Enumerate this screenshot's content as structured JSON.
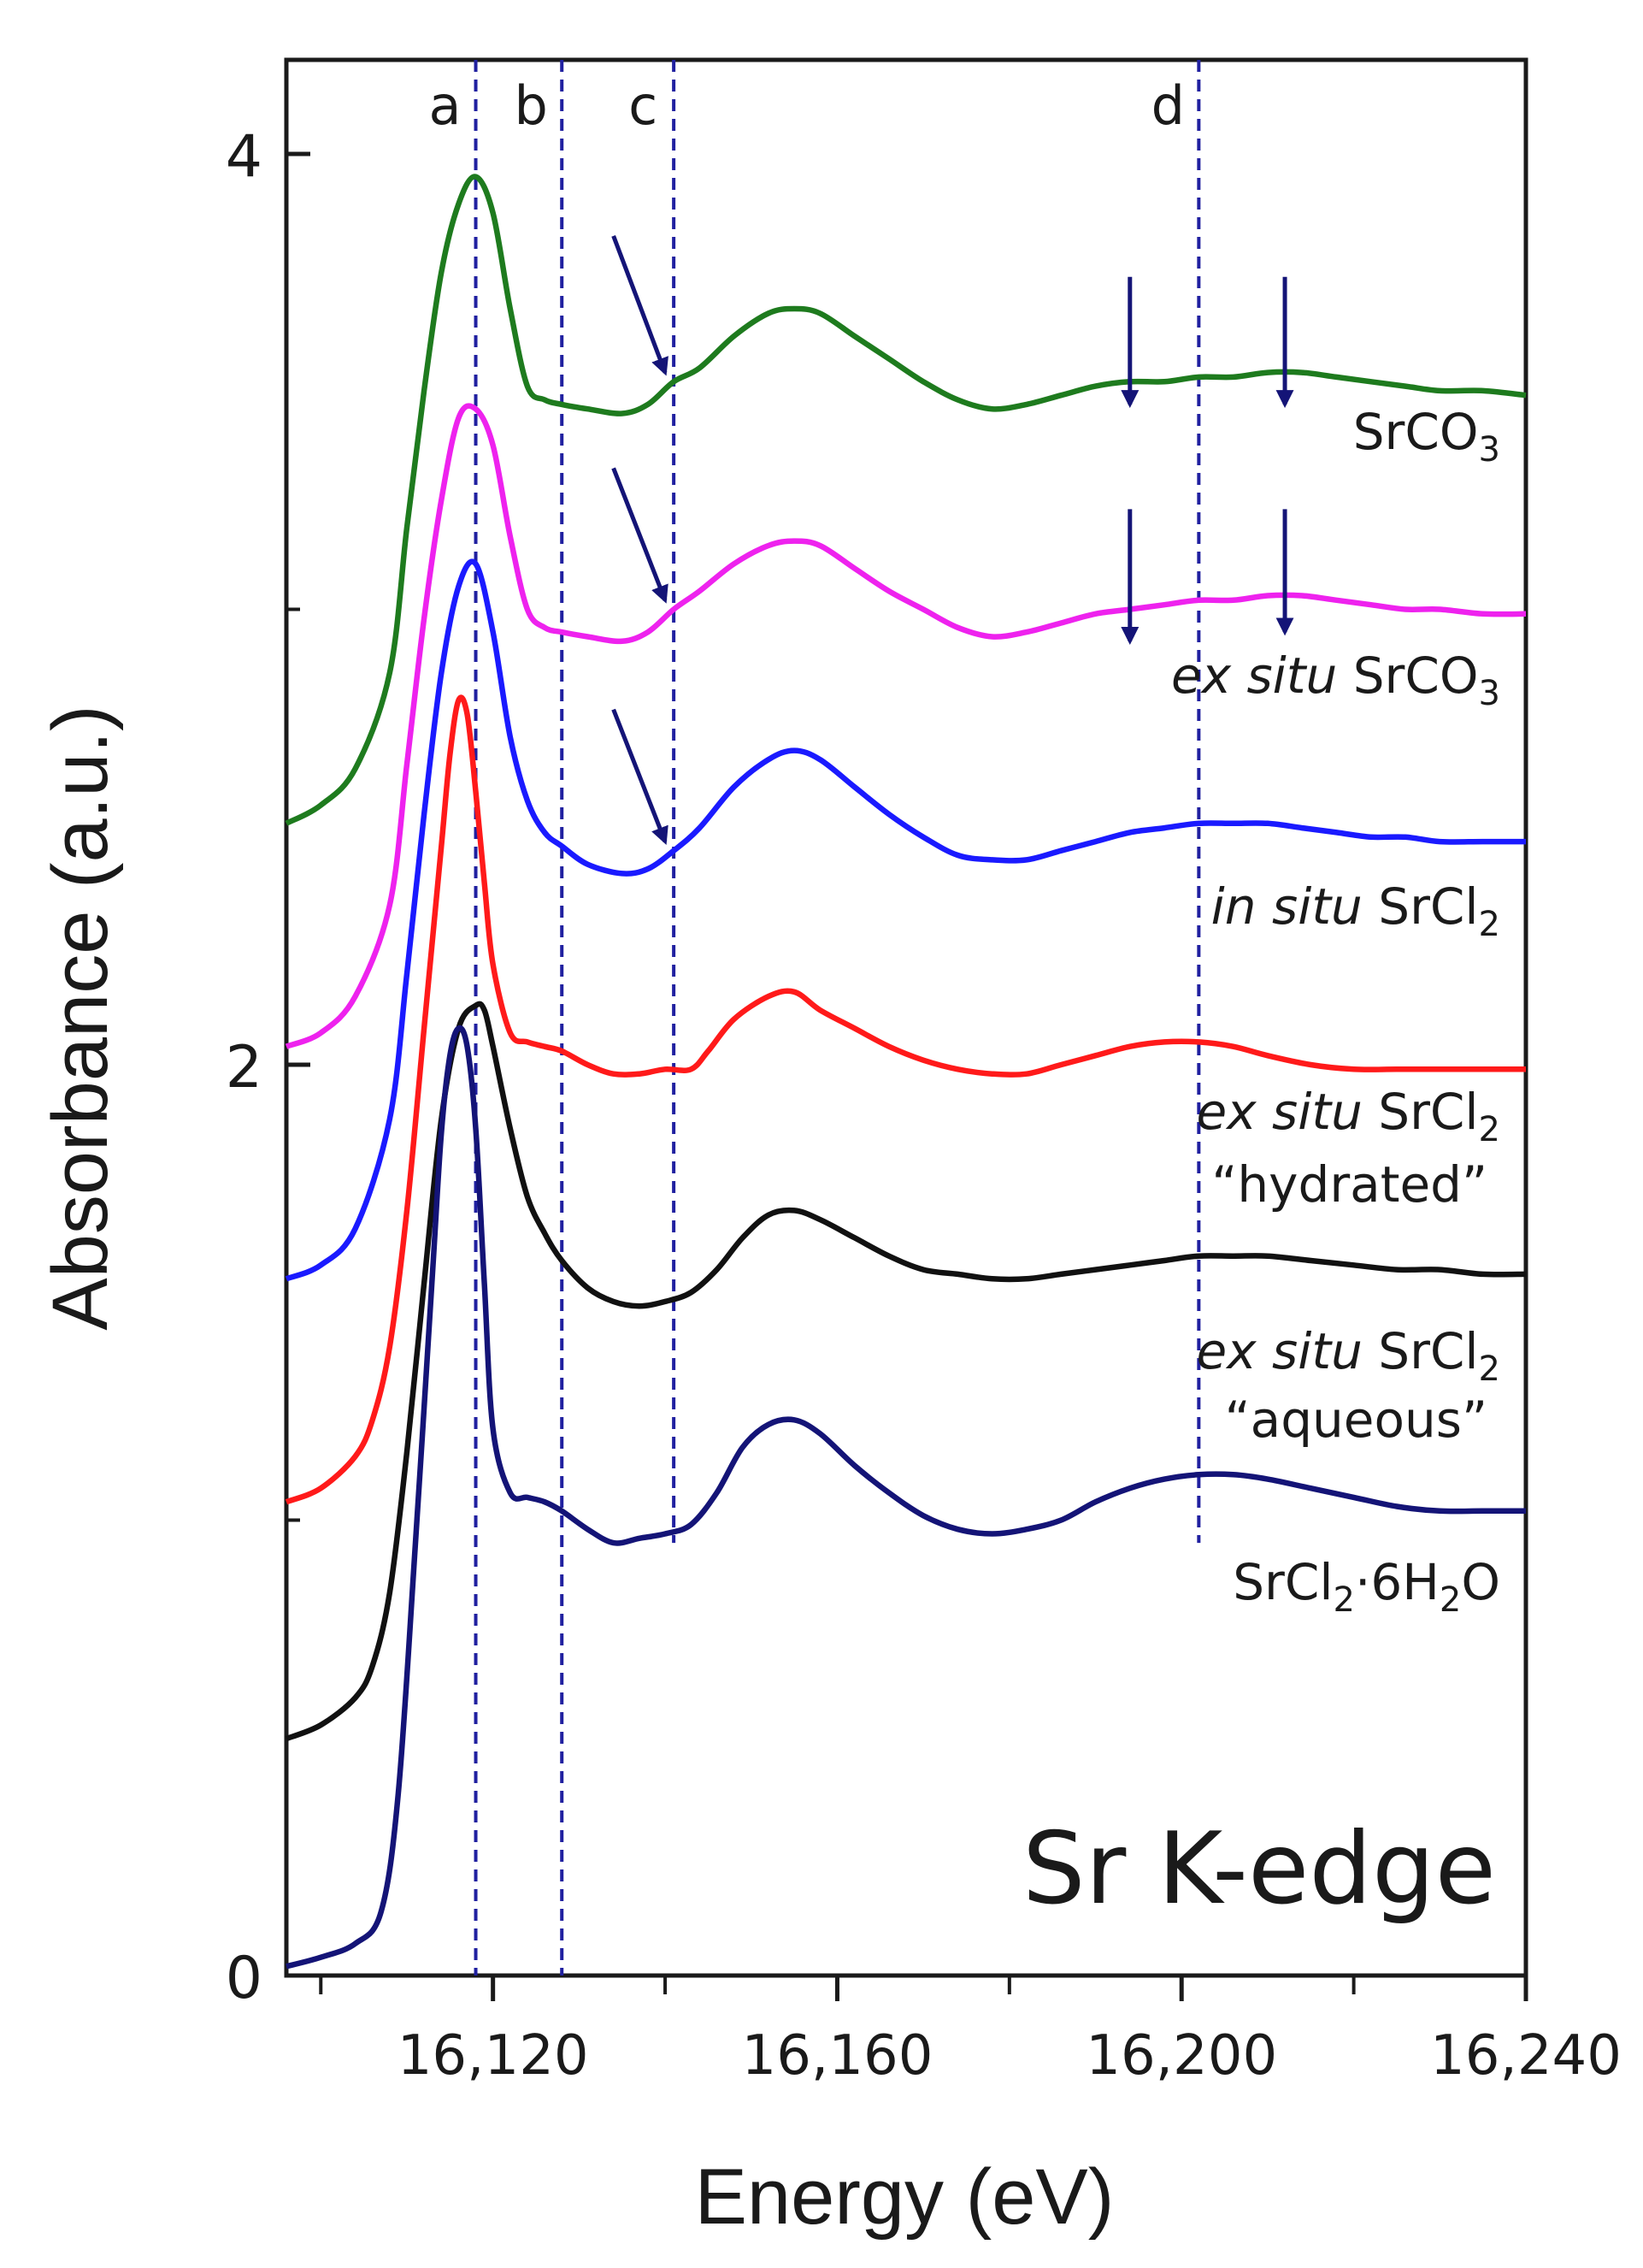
{
  "chart_data": {
    "type": "line",
    "title": "Sr K-edge",
    "xlabel": "Energy (eV)",
    "ylabel": "Absorbance (a.u.)",
    "xlim": [
      16096,
      16240
    ],
    "ylim": [
      0,
      4.2
    ],
    "x_ticks": [
      {
        "value": 16120,
        "label": "16,120"
      },
      {
        "value": 16160,
        "label": "16,160"
      },
      {
        "value": 16200,
        "label": "16,200"
      },
      {
        "value": 16240,
        "label": "16,240"
      }
    ],
    "x_minor_ticks": [
      16100,
      16140,
      16180,
      16220
    ],
    "y_ticks": [
      {
        "value": 0,
        "label": "0"
      },
      {
        "value": 2,
        "label": "2"
      },
      {
        "value": 4,
        "label": "4"
      }
    ],
    "y_minor_ticks": [
      1,
      3
    ],
    "reference_lines": [
      {
        "label": "a",
        "x": 16118
      },
      {
        "label": "b",
        "x": 16128
      },
      {
        "label": "c",
        "x": 16141
      },
      {
        "label": "d",
        "x": 16202
      }
    ],
    "arrows": [
      {
        "series": "SrCO3",
        "from": [
          16134,
          3.82
        ],
        "to": [
          16140,
          3.52
        ]
      },
      {
        "series": "ex situ SrCO3",
        "from": [
          16134,
          3.31
        ],
        "to": [
          16140,
          3.02
        ]
      },
      {
        "series": "in situ SrCl2",
        "from": [
          16134,
          2.78
        ],
        "to": [
          16140,
          2.49
        ]
      },
      {
        "series": "SrCO3",
        "from": [
          16194,
          3.73
        ],
        "to": [
          16194,
          3.45
        ]
      },
      {
        "series": "SrCO3",
        "from": [
          16212,
          3.73
        ],
        "to": [
          16212,
          3.45
        ]
      },
      {
        "series": "ex situ SrCO3",
        "from": [
          16194,
          3.22
        ],
        "to": [
          16194,
          2.93
        ]
      },
      {
        "series": "ex situ SrCO3",
        "from": [
          16212,
          3.22
        ],
        "to": [
          16212,
          2.95
        ]
      }
    ],
    "series": [
      {
        "name": "SrCO3",
        "label_parts": [
          {
            "t": "SrCO",
            "s": "normal"
          },
          {
            "t": "3",
            "s": "sub"
          }
        ],
        "label_lines": 1,
        "color": "#1e7b1e",
        "x": [
          16096,
          16100,
          16104,
          16108,
          16110,
          16112,
          16114,
          16116,
          16118,
          16120,
          16122,
          16124,
          16126,
          16128,
          16131,
          16135,
          16138,
          16141,
          16144,
          16148,
          16152,
          16155,
          16158,
          16162,
          16166,
          16170,
          16174,
          16178,
          16182,
          16186,
          16190,
          16194,
          16198,
          16202,
          16206,
          16210,
          16214,
          16218,
          16222,
          16226,
          16230,
          16235,
          16240
        ],
        "values": [
          2.53,
          2.57,
          2.65,
          2.86,
          3.18,
          3.48,
          3.74,
          3.89,
          3.95,
          3.87,
          3.66,
          3.49,
          3.46,
          3.45,
          3.44,
          3.43,
          3.45,
          3.5,
          3.53,
          3.6,
          3.65,
          3.66,
          3.65,
          3.6,
          3.55,
          3.5,
          3.46,
          3.44,
          3.45,
          3.47,
          3.49,
          3.5,
          3.5,
          3.51,
          3.51,
          3.52,
          3.52,
          3.51,
          3.5,
          3.49,
          3.48,
          3.48,
          3.47
        ]
      },
      {
        "name": "ex situ SrCO3",
        "label_parts": [
          {
            "t": "ex situ",
            "s": "italic"
          },
          {
            "t": " SrCO",
            "s": "normal"
          },
          {
            "t": "3",
            "s": "sub"
          }
        ],
        "label_lines": 1,
        "color": "#ee22ee",
        "x": [
          16096,
          16100,
          16104,
          16108,
          16110,
          16112,
          16114,
          16116,
          16118,
          16120,
          16122,
          16124,
          16126,
          16128,
          16131,
          16135,
          16138,
          16141,
          16144,
          16148,
          16152,
          16155,
          16158,
          16162,
          16166,
          16170,
          16174,
          16178,
          16182,
          16186,
          16190,
          16194,
          16198,
          16202,
          16206,
          16210,
          16214,
          16218,
          16222,
          16226,
          16230,
          16235,
          16240
        ],
        "values": [
          2.04,
          2.07,
          2.15,
          2.35,
          2.66,
          2.98,
          3.24,
          3.42,
          3.44,
          3.36,
          3.16,
          3.0,
          2.96,
          2.95,
          2.94,
          2.93,
          2.95,
          3.0,
          3.04,
          3.1,
          3.14,
          3.15,
          3.14,
          3.09,
          3.04,
          3.0,
          2.96,
          2.94,
          2.95,
          2.97,
          2.99,
          3.0,
          3.01,
          3.02,
          3.02,
          3.03,
          3.03,
          3.02,
          3.01,
          3.0,
          3.0,
          2.99,
          2.99
        ]
      },
      {
        "name": "in situ SrCl2",
        "label_parts": [
          {
            "t": "in situ",
            "s": "italic"
          },
          {
            "t": " SrCl",
            "s": "normal"
          },
          {
            "t": "2",
            "s": "sub"
          }
        ],
        "label_lines": 1,
        "color": "#1a1aff",
        "x": [
          16096,
          16100,
          16104,
          16108,
          16110,
          16112,
          16114,
          16116,
          16118,
          16120,
          16122,
          16124,
          16126,
          16128,
          16131,
          16135,
          16138,
          16141,
          16144,
          16148,
          16152,
          16155,
          16158,
          16162,
          16166,
          16170,
          16174,
          16178,
          16182,
          16186,
          16190,
          16194,
          16198,
          16202,
          16206,
          16210,
          16214,
          16218,
          16222,
          16226,
          16230,
          16235,
          16240
        ],
        "values": [
          1.53,
          1.56,
          1.64,
          1.88,
          2.2,
          2.55,
          2.86,
          3.05,
          3.1,
          2.95,
          2.72,
          2.58,
          2.51,
          2.48,
          2.44,
          2.42,
          2.43,
          2.47,
          2.52,
          2.61,
          2.67,
          2.69,
          2.67,
          2.61,
          2.55,
          2.5,
          2.46,
          2.45,
          2.45,
          2.47,
          2.49,
          2.51,
          2.52,
          2.53,
          2.53,
          2.53,
          2.52,
          2.51,
          2.5,
          2.5,
          2.49,
          2.49,
          2.49
        ]
      },
      {
        "name": "ex situ SrCl2 hydrated",
        "label_parts": [
          {
            "t": "ex situ",
            "s": "italic"
          },
          {
            "t": " SrCl",
            "s": "normal"
          },
          {
            "t": "2",
            "s": "sub"
          }
        ],
        "label_line2": "“hydrated”",
        "label_lines": 2,
        "color": "#ff1a1a",
        "x": [
          16096,
          16100,
          16104,
          16106,
          16108,
          16110,
          16112,
          16114,
          16115,
          16116,
          16117,
          16118,
          16119,
          16120,
          16122,
          16124,
          16126,
          16128,
          16131,
          16134,
          16137,
          16140,
          16143,
          16145,
          16148,
          16152,
          16155,
          16158,
          16162,
          16166,
          16170,
          16174,
          16178,
          16182,
          16186,
          16190,
          16194,
          16198,
          16202,
          16206,
          16210,
          16215,
          16220,
          16225,
          16230,
          16235,
          16240
        ],
        "values": [
          1.04,
          1.07,
          1.14,
          1.22,
          1.38,
          1.68,
          2.08,
          2.48,
          2.68,
          2.8,
          2.77,
          2.6,
          2.4,
          2.22,
          2.07,
          2.05,
          2.04,
          2.03,
          2.0,
          1.98,
          1.98,
          1.99,
          1.99,
          2.03,
          2.1,
          2.15,
          2.16,
          2.12,
          2.08,
          2.04,
          2.01,
          1.99,
          1.98,
          1.98,
          2.0,
          2.02,
          2.04,
          2.05,
          2.05,
          2.04,
          2.02,
          2.0,
          1.99,
          1.99,
          1.99,
          1.99,
          1.99
        ]
      },
      {
        "name": "ex situ SrCl2 aqueous",
        "label_parts": [
          {
            "t": "ex situ",
            "s": "italic"
          },
          {
            "t": " SrCl",
            "s": "normal"
          },
          {
            "t": "2",
            "s": "sub"
          }
        ],
        "label_line2": "“aqueous”",
        "label_lines": 2,
        "color": "#111111",
        "x": [
          16096,
          16100,
          16104,
          16106,
          16108,
          16110,
          16112,
          16114,
          16116,
          16118,
          16119,
          16120,
          16122,
          16124,
          16126,
          16128,
          16131,
          16134,
          16137,
          16140,
          16143,
          16146,
          16149,
          16152,
          16155,
          16158,
          16162,
          16166,
          16170,
          16174,
          16178,
          16182,
          16186,
          16190,
          16194,
          16198,
          16202,
          16206,
          16210,
          16215,
          16220,
          16225,
          16230,
          16235,
          16240
        ],
        "values": [
          0.52,
          0.55,
          0.61,
          0.68,
          0.84,
          1.15,
          1.52,
          1.88,
          2.08,
          2.13,
          2.12,
          2.04,
          1.86,
          1.71,
          1.63,
          1.57,
          1.51,
          1.48,
          1.47,
          1.48,
          1.5,
          1.55,
          1.62,
          1.67,
          1.68,
          1.66,
          1.62,
          1.58,
          1.55,
          1.54,
          1.53,
          1.53,
          1.54,
          1.55,
          1.56,
          1.57,
          1.58,
          1.58,
          1.58,
          1.57,
          1.56,
          1.55,
          1.55,
          1.54,
          1.54
        ]
      },
      {
        "name": "SrCl2·6H2O",
        "label_parts": [
          {
            "t": "SrCl",
            "s": "normal"
          },
          {
            "t": "2",
            "s": "sub"
          },
          {
            "t": "·6H",
            "s": "normal"
          },
          {
            "t": "2",
            "s": "sub"
          },
          {
            "t": "O",
            "s": "normal"
          }
        ],
        "label_lines": 1,
        "color": "#141477",
        "x": [
          16096,
          16100,
          16104,
          16107,
          16109,
          16111,
          16113,
          16114,
          16115,
          16116,
          16117,
          16118,
          16119,
          16120,
          16122,
          16124,
          16126,
          16128,
          16131,
          16134,
          16137,
          16140,
          16143,
          16146,
          16149,
          16152,
          16155,
          16158,
          16162,
          16166,
          16170,
          16174,
          16178,
          16182,
          16186,
          16190,
          16194,
          16198,
          16202,
          16206,
          16210,
          16215,
          16220,
          16225,
          16230,
          16235,
          16240
        ],
        "values": [
          0.02,
          0.04,
          0.07,
          0.14,
          0.4,
          0.95,
          1.55,
          1.85,
          2.02,
          2.08,
          2.04,
          1.86,
          1.52,
          1.2,
          1.06,
          1.05,
          1.04,
          1.02,
          0.98,
          0.95,
          0.96,
          0.97,
          0.99,
          1.06,
          1.16,
          1.21,
          1.22,
          1.19,
          1.12,
          1.06,
          1.01,
          0.98,
          0.97,
          0.98,
          1.0,
          1.04,
          1.07,
          1.09,
          1.1,
          1.1,
          1.09,
          1.07,
          1.05,
          1.03,
          1.02,
          1.02,
          1.02
        ]
      }
    ]
  },
  "colors": {
    "axis": "#1a1a1a",
    "reference_line": "#2020a0",
    "arrow": "#141477"
  }
}
